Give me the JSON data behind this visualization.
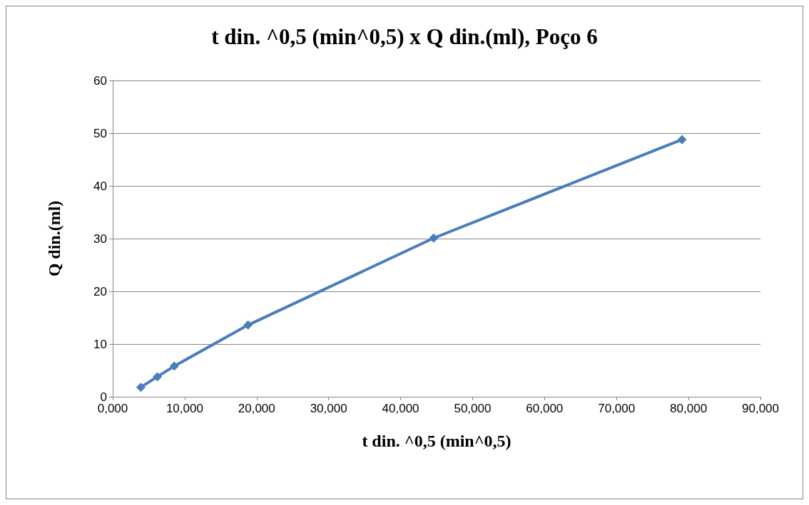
{
  "chart_data": {
    "type": "line",
    "title": "t din. ^0,5 (min^0,5) x Q din.(ml), Poço 6",
    "xlabel": "t din. ^0,5 (min^0,5)",
    "ylabel": "Q din.(ml)",
    "x": [
      3.9,
      6.2,
      8.55,
      18.8,
      44.6,
      79.1
    ],
    "series": [
      {
        "color": "#4a7ebb",
        "values": [
          1.8,
          3.8,
          5.8,
          13.6,
          30.1,
          48.8
        ]
      }
    ],
    "xlim": [
      0,
      90
    ],
    "xticks": [
      {
        "value": 0,
        "label": "0,000"
      },
      {
        "value": 10,
        "label": "10,000"
      },
      {
        "value": 20,
        "label": "20,000"
      },
      {
        "value": 30,
        "label": "30,000"
      },
      {
        "value": 40,
        "label": "40,000"
      },
      {
        "value": 50,
        "label": "50,000"
      },
      {
        "value": 60,
        "label": "60,000"
      },
      {
        "value": 70,
        "label": "70,000"
      },
      {
        "value": 80,
        "label": "80,000"
      },
      {
        "value": 90,
        "label": "90,000"
      }
    ],
    "ylim": [
      0,
      60
    ],
    "yticks": [
      0,
      10,
      20,
      30,
      40,
      50,
      60
    ],
    "grid": "y",
    "marker": "diamond",
    "line_style": "solid"
  }
}
